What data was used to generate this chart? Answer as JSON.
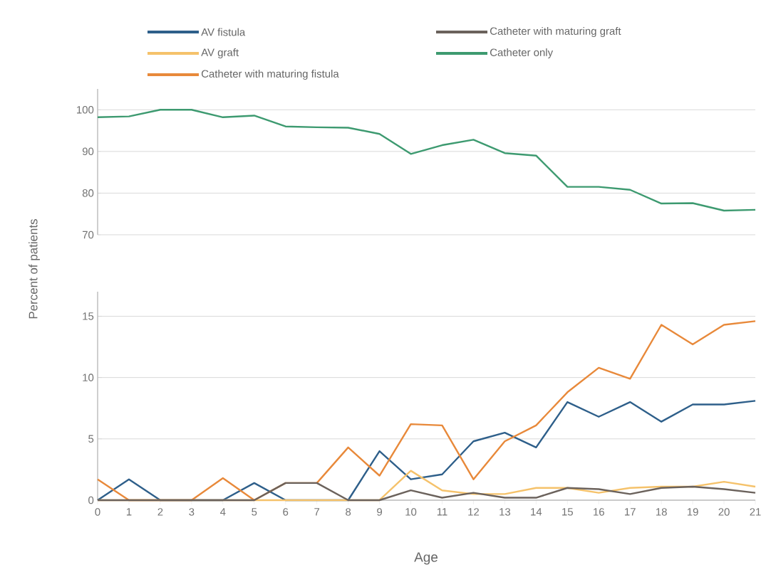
{
  "chart_data": [
    {
      "type": "line",
      "ylabel": "Percent of patients",
      "categories": [
        "0",
        "1",
        "2",
        "3",
        "4",
        "5",
        "6",
        "7",
        "8",
        "9",
        "10",
        "11",
        "12",
        "13",
        "14",
        "15",
        "16",
        "17",
        "18",
        "19",
        "20",
        "21"
      ],
      "ylim": [
        70,
        105
      ],
      "yticks": [
        70,
        80,
        90,
        100
      ],
      "grid": "y",
      "legend": "top",
      "tick_labels": "y",
      "series": [
        {
          "name": "Catheter only",
          "color": "#3d9a70",
          "values": [
            98.2,
            98.4,
            100,
            100,
            98.2,
            98.6,
            96,
            95.8,
            95.7,
            94.2,
            89.4,
            91.5,
            92.8,
            89.6,
            89,
            81.5,
            81.5,
            80.8,
            77.5,
            77.6,
            75.8,
            76
          ]
        }
      ]
    },
    {
      "type": "line",
      "xlabel": "Age",
      "categories": [
        "0",
        "1",
        "2",
        "3",
        "4",
        "5",
        "6",
        "7",
        "8",
        "9",
        "10",
        "11",
        "12",
        "13",
        "14",
        "15",
        "16",
        "17",
        "18",
        "19",
        "20",
        "21"
      ],
      "ylim": [
        0,
        17
      ],
      "yticks": [
        0,
        5,
        10,
        15
      ],
      "grid": "y",
      "legend": "top",
      "series": [
        {
          "name": "AV fistula",
          "color": "#2e5f8a",
          "values": [
            0,
            1.7,
            0,
            0,
            0,
            1.4,
            0,
            0,
            0,
            4.0,
            1.7,
            2.1,
            4.8,
            5.5,
            4.3,
            8.0,
            6.8,
            8.0,
            6.4,
            7.8,
            7.8,
            8.1
          ]
        },
        {
          "name": "AV graft",
          "color": "#f5c26b",
          "values": [
            0,
            0,
            0,
            0,
            0,
            0,
            0,
            0,
            0,
            0,
            2.4,
            0.8,
            0.5,
            0.5,
            1.0,
            1.0,
            0.6,
            1.0,
            1.1,
            1.1,
            1.5,
            1.1
          ]
        },
        {
          "name": "Catheter with maturing fistula",
          "color": "#e8893a",
          "values": [
            1.7,
            0,
            0,
            0,
            1.8,
            0,
            1.4,
            1.4,
            4.3,
            2.0,
            6.2,
            6.1,
            1.7,
            4.8,
            6.1,
            8.8,
            10.8,
            9.9,
            14.3,
            12.7,
            14.3,
            14.6
          ]
        },
        {
          "name": "Catheter with maturing graft",
          "color": "#6b625c",
          "values": [
            0,
            0,
            0,
            0,
            0,
            0,
            1.4,
            1.4,
            0,
            0,
            0.8,
            0.2,
            0.6,
            0.2,
            0.2,
            1.0,
            0.9,
            0.5,
            1.0,
            1.1,
            0.9,
            0.6
          ]
        }
      ]
    }
  ]
}
